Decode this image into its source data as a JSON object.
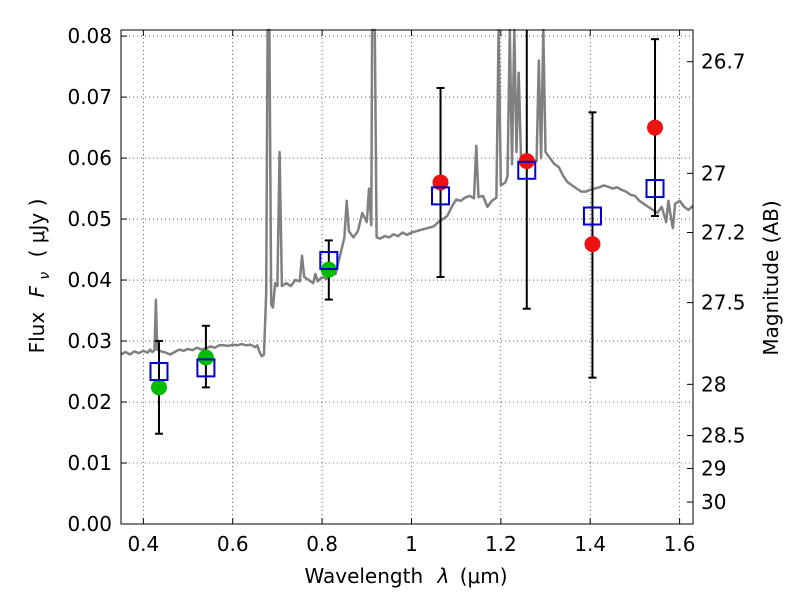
{
  "chart_data": {
    "type": "scatter",
    "xlabel_text": "Wavelength",
    "xlabel_symbol": "λ",
    "xlabel_unit": "(μm)",
    "ylabel_text": "Flux",
    "ylabel_symbol": "F",
    "ylabel_symbol_sub": "ν",
    "ylabel_unit": "( μJy )",
    "y2label": "Magnitude (AB)",
    "xlim": [
      0.35,
      1.63
    ],
    "ylim": [
      0.0,
      0.081
    ],
    "grid": true,
    "x_ticks": [
      {
        "value": 0.4,
        "label": "0.4"
      },
      {
        "value": 0.6,
        "label": "0.6"
      },
      {
        "value": 0.8,
        "label": "0.8"
      },
      {
        "value": 1.0,
        "label": "1"
      },
      {
        "value": 1.2,
        "label": "1.2"
      },
      {
        "value": 1.4,
        "label": "1.4"
      },
      {
        "value": 1.6,
        "label": "1.6"
      }
    ],
    "y_ticks": [
      {
        "value": 0.0,
        "label": "0.00"
      },
      {
        "value": 0.01,
        "label": "0.01"
      },
      {
        "value": 0.02,
        "label": "0.02"
      },
      {
        "value": 0.03,
        "label": "0.03"
      },
      {
        "value": 0.04,
        "label": "0.04"
      },
      {
        "value": 0.05,
        "label": "0.05"
      },
      {
        "value": 0.06,
        "label": "0.06"
      },
      {
        "value": 0.07,
        "label": "0.07"
      },
      {
        "value": 0.08,
        "label": "0.08"
      }
    ],
    "y2_ticks": [
      {
        "flux": 0.0758,
        "label": "26.7"
      },
      {
        "flux": 0.0575,
        "label": "27"
      },
      {
        "flux": 0.0478,
        "label": "27.2"
      },
      {
        "flux": 0.0363,
        "label": "27.5"
      },
      {
        "flux": 0.0229,
        "label": "28"
      },
      {
        "flux": 0.0145,
        "label": "28.5"
      },
      {
        "flux": 0.0091,
        "label": "29"
      },
      {
        "flux": 0.0036,
        "label": "30"
      }
    ],
    "spectrum_color": "#808080",
    "spectrum": [
      [
        0.35,
        0.0278
      ],
      [
        0.36,
        0.0282
      ],
      [
        0.37,
        0.0278
      ],
      [
        0.38,
        0.0283
      ],
      [
        0.39,
        0.028
      ],
      [
        0.4,
        0.0284
      ],
      [
        0.41,
        0.0281
      ],
      [
        0.415,
        0.0286
      ],
      [
        0.42,
        0.0282
      ],
      [
        0.425,
        0.0285
      ],
      [
        0.428,
        0.0368
      ],
      [
        0.431,
        0.0286
      ],
      [
        0.44,
        0.0283
      ],
      [
        0.45,
        0.0281
      ],
      [
        0.46,
        0.0278
      ],
      [
        0.47,
        0.0282
      ],
      [
        0.48,
        0.0286
      ],
      [
        0.49,
        0.0284
      ],
      [
        0.5,
        0.0287
      ],
      [
        0.51,
        0.0285
      ],
      [
        0.52,
        0.0289
      ],
      [
        0.53,
        0.0286
      ],
      [
        0.54,
        0.0288
      ],
      [
        0.55,
        0.0291
      ],
      [
        0.56,
        0.0289
      ],
      [
        0.57,
        0.0293
      ],
      [
        0.58,
        0.0293
      ],
      [
        0.59,
        0.0292
      ],
      [
        0.6,
        0.0294
      ],
      [
        0.61,
        0.0293
      ],
      [
        0.62,
        0.0295
      ],
      [
        0.63,
        0.0293
      ],
      [
        0.64,
        0.0294
      ],
      [
        0.65,
        0.029
      ],
      [
        0.655,
        0.0293
      ],
      [
        0.66,
        0.0282
      ],
      [
        0.665,
        0.0275
      ],
      [
        0.67,
        0.0278
      ],
      [
        0.675,
        0.038
      ],
      [
        0.678,
        0.081
      ],
      [
        0.682,
        0.081
      ],
      [
        0.686,
        0.036
      ],
      [
        0.69,
        0.0355
      ],
      [
        0.695,
        0.0395
      ],
      [
        0.7,
        0.039
      ],
      [
        0.705,
        0.061
      ],
      [
        0.71,
        0.039
      ],
      [
        0.72,
        0.0395
      ],
      [
        0.73,
        0.039
      ],
      [
        0.74,
        0.04
      ],
      [
        0.75,
        0.0398
      ],
      [
        0.755,
        0.044
      ],
      [
        0.76,
        0.0405
      ],
      [
        0.77,
        0.04
      ],
      [
        0.78,
        0.0395
      ],
      [
        0.785,
        0.041
      ],
      [
        0.79,
        0.0398
      ],
      [
        0.8,
        0.0405
      ],
      [
        0.81,
        0.0402
      ],
      [
        0.82,
        0.042
      ],
      [
        0.83,
        0.041
      ],
      [
        0.84,
        0.044
      ],
      [
        0.85,
        0.047
      ],
      [
        0.855,
        0.053
      ],
      [
        0.86,
        0.048
      ],
      [
        0.87,
        0.047
      ],
      [
        0.88,
        0.048
      ],
      [
        0.89,
        0.051
      ],
      [
        0.9,
        0.0495
      ],
      [
        0.905,
        0.055
      ],
      [
        0.91,
        0.049
      ],
      [
        0.912,
        0.081
      ],
      [
        0.918,
        0.081
      ],
      [
        0.922,
        0.047
      ],
      [
        0.93,
        0.0468
      ],
      [
        0.94,
        0.0472
      ],
      [
        0.95,
        0.047
      ],
      [
        0.96,
        0.0475
      ],
      [
        0.97,
        0.0472
      ],
      [
        0.98,
        0.0478
      ],
      [
        0.99,
        0.0474
      ],
      [
        1.0,
        0.0478
      ],
      [
        1.01,
        0.048
      ],
      [
        1.02,
        0.0482
      ],
      [
        1.03,
        0.0484
      ],
      [
        1.04,
        0.0486
      ],
      [
        1.05,
        0.0488
      ],
      [
        1.06,
        0.0495
      ],
      [
        1.07,
        0.05
      ],
      [
        1.08,
        0.0505
      ],
      [
        1.09,
        0.052
      ],
      [
        1.1,
        0.0532
      ],
      [
        1.11,
        0.053
      ],
      [
        1.12,
        0.0535
      ],
      [
        1.13,
        0.0538
      ],
      [
        1.14,
        0.0534
      ],
      [
        1.145,
        0.062
      ],
      [
        1.15,
        0.0536
      ],
      [
        1.16,
        0.0538
      ],
      [
        1.17,
        0.052
      ],
      [
        1.18,
        0.053
      ],
      [
        1.19,
        0.0535
      ],
      [
        1.195,
        0.081
      ],
      [
        1.2,
        0.0555
      ],
      [
        1.21,
        0.056
      ],
      [
        1.215,
        0.057
      ],
      [
        1.22,
        0.081
      ],
      [
        1.225,
        0.059
      ],
      [
        1.23,
        0.081
      ],
      [
        1.235,
        0.061
      ],
      [
        1.24,
        0.074
      ],
      [
        1.245,
        0.06
      ],
      [
        1.25,
        0.059
      ],
      [
        1.26,
        0.0595
      ],
      [
        1.27,
        0.0598
      ],
      [
        1.28,
        0.0595
      ],
      [
        1.285,
        0.076
      ],
      [
        1.29,
        0.06
      ],
      [
        1.295,
        0.081
      ],
      [
        1.3,
        0.061
      ],
      [
        1.31,
        0.06
      ],
      [
        1.32,
        0.059
      ],
      [
        1.33,
        0.0585
      ],
      [
        1.34,
        0.057
      ],
      [
        1.35,
        0.056
      ],
      [
        1.36,
        0.0555
      ],
      [
        1.37,
        0.055
      ],
      [
        1.38,
        0.0545
      ],
      [
        1.39,
        0.0545
      ],
      [
        1.4,
        0.0548
      ],
      [
        1.41,
        0.055
      ],
      [
        1.42,
        0.0552
      ],
      [
        1.43,
        0.0555
      ],
      [
        1.44,
        0.0553
      ],
      [
        1.45,
        0.055
      ],
      [
        1.46,
        0.0552
      ],
      [
        1.47,
        0.0548
      ],
      [
        1.48,
        0.0545
      ],
      [
        1.49,
        0.054
      ],
      [
        1.5,
        0.0538
      ],
      [
        1.51,
        0.053
      ],
      [
        1.52,
        0.0525
      ],
      [
        1.53,
        0.052
      ],
      [
        1.54,
        0.0515
      ],
      [
        1.55,
        0.051
      ],
      [
        1.56,
        0.052
      ],
      [
        1.57,
        0.0495
      ],
      [
        1.575,
        0.053
      ],
      [
        1.58,
        0.0505
      ],
      [
        1.585,
        0.0485
      ],
      [
        1.59,
        0.0525
      ],
      [
        1.6,
        0.053
      ],
      [
        1.61,
        0.052
      ],
      [
        1.62,
        0.0515
      ],
      [
        1.63,
        0.0522
      ]
    ],
    "model_points": {
      "color": "#0000cc",
      "points": [
        {
          "x": 0.435,
          "y": 0.025
        },
        {
          "x": 0.54,
          "y": 0.0256
        },
        {
          "x": 0.815,
          "y": 0.0432
        },
        {
          "x": 1.065,
          "y": 0.0538
        },
        {
          "x": 1.258,
          "y": 0.058
        },
        {
          "x": 1.405,
          "y": 0.0505
        },
        {
          "x": 1.545,
          "y": 0.055
        }
      ]
    },
    "observed_optical": {
      "color": "#00bb00",
      "points": [
        {
          "x": 0.435,
          "y": 0.0224
        },
        {
          "x": 0.54,
          "y": 0.0273
        },
        {
          "x": 0.815,
          "y": 0.0417
        }
      ]
    },
    "observed_nir": {
      "color": "#ee1111",
      "points": [
        {
          "x": 1.065,
          "y": 0.056
        },
        {
          "x": 1.258,
          "y": 0.0595
        },
        {
          "x": 1.405,
          "y": 0.0459
        },
        {
          "x": 1.545,
          "y": 0.065
        }
      ]
    },
    "error_bars": [
      {
        "x": 0.435,
        "low": 0.0148,
        "high": 0.03
      },
      {
        "x": 0.54,
        "low": 0.0224,
        "high": 0.0325
      },
      {
        "x": 0.815,
        "low": 0.0368,
        "high": 0.0465
      },
      {
        "x": 1.065,
        "low": 0.0405,
        "high": 0.0715
      },
      {
        "x": 1.258,
        "low": 0.0353,
        "high": 0.081
      },
      {
        "x": 1.405,
        "low": 0.024,
        "high": 0.0675
      },
      {
        "x": 1.545,
        "low": 0.0505,
        "high": 0.0795
      }
    ]
  }
}
